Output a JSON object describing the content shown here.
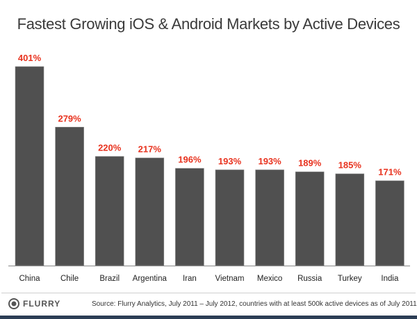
{
  "chart_data": {
    "type": "bar",
    "title": "Fastest Growing iOS & Android Markets by Active Devices",
    "categories": [
      "China",
      "Chile",
      "Brazil",
      "Argentina",
      "Iran",
      "Vietnam",
      "Mexico",
      "Russia",
      "Turkey",
      "India"
    ],
    "values": [
      401,
      279,
      220,
      217,
      196,
      193,
      193,
      189,
      185,
      171
    ],
    "data_labels": [
      "401%",
      "279%",
      "220%",
      "217%",
      "196%",
      "193%",
      "193%",
      "189%",
      "185%",
      "171%"
    ],
    "unit": "%",
    "ylim": [
      0,
      401
    ],
    "grid": false,
    "legend": "none",
    "colors": {
      "bar": "#505050",
      "label": "#e8321e"
    }
  },
  "footer": {
    "logo": "FLURRY",
    "source": "Source: Flurry Analytics, July 2011 – July 2012, countries with at least 500k active devices as of July 2011"
  }
}
